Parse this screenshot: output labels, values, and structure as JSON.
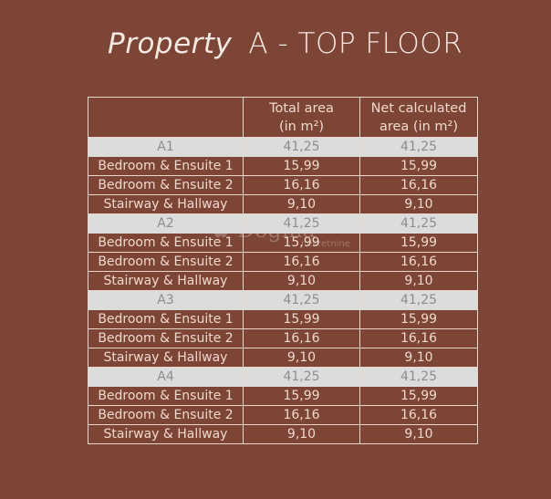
{
  "title": {
    "italic": "Property",
    "rest": "A - TOP FLOOR"
  },
  "watermark": {
    "name": "Dogma",
    "sub": "nekretnine"
  },
  "table": {
    "headers": [
      "",
      "Total area (in m²)",
      "Net calculated area (in m²)"
    ],
    "rows": [
      {
        "group": true,
        "cells": [
          "A1",
          "41,25",
          "41,25"
        ]
      },
      {
        "group": false,
        "cells": [
          "Bedroom & Ensuite 1",
          "15,99",
          "15,99"
        ]
      },
      {
        "group": false,
        "cells": [
          "Bedroom & Ensuite 2",
          "16,16",
          "16,16"
        ]
      },
      {
        "group": false,
        "cells": [
          "Stairway & Hallway",
          "9,10",
          "9,10"
        ]
      },
      {
        "group": true,
        "cells": [
          "A2",
          "41,25",
          "41,25"
        ]
      },
      {
        "group": false,
        "cells": [
          "Bedroom & Ensuite 1",
          "15,99",
          "15,99"
        ]
      },
      {
        "group": false,
        "cells": [
          "Bedroom & Ensuite 2",
          "16,16",
          "16,16"
        ]
      },
      {
        "group": false,
        "cells": [
          "Stairway & Hallway",
          "9,10",
          "9,10"
        ]
      },
      {
        "group": true,
        "cells": [
          "A3",
          "41,25",
          "41,25"
        ]
      },
      {
        "group": false,
        "cells": [
          "Bedroom & Ensuite 1",
          "15,99",
          "15,99"
        ]
      },
      {
        "group": false,
        "cells": [
          "Bedroom & Ensuite 2",
          "16,16",
          "16,16"
        ]
      },
      {
        "group": false,
        "cells": [
          "Stairway & Hallway",
          "9,10",
          "9,10"
        ]
      },
      {
        "group": true,
        "cells": [
          "A4",
          "41,25",
          "41,25"
        ]
      },
      {
        "group": false,
        "cells": [
          "Bedroom & Ensuite 1",
          "15,99",
          "15,99"
        ]
      },
      {
        "group": false,
        "cells": [
          "Bedroom & Ensuite 2",
          "16,16",
          "16,16"
        ]
      },
      {
        "group": false,
        "cells": [
          "Stairway & Hallway",
          "9,10",
          "9,10"
        ]
      }
    ]
  },
  "colors": {
    "background": "#7c4535",
    "group_row": "#dcdcdc",
    "text": "#f0d9cc"
  }
}
